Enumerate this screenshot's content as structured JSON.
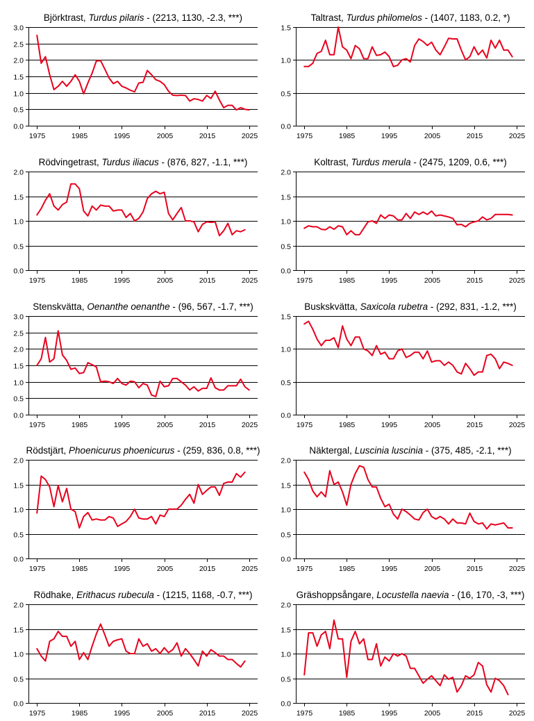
{
  "chart_data": [
    {
      "type": "line",
      "species": "Björktrast",
      "latin": "Turdus pilaris",
      "stats": "(2213, 1130, -2.3, ***)",
      "ylim": [
        0,
        3
      ],
      "yticks": [
        "0.0",
        "0.5",
        "1.0",
        "1.5",
        "2.0",
        "2.5",
        "3.0"
      ],
      "xticks": [
        "1975",
        "1985",
        "1995",
        "2005",
        "2015",
        "2025"
      ],
      "x_start": 1975,
      "values": [
        2.75,
        1.9,
        2.1,
        1.55,
        1.1,
        1.2,
        1.35,
        1.2,
        1.35,
        1.55,
        1.35,
        0.97,
        1.3,
        1.6,
        1.97,
        1.98,
        1.72,
        1.45,
        1.28,
        1.35,
        1.2,
        1.15,
        1.08,
        1.03,
        1.3,
        1.32,
        1.68,
        1.55,
        1.4,
        1.35,
        1.25,
        1.05,
        0.93,
        0.92,
        0.93,
        0.92,
        0.75,
        0.82,
        0.8,
        0.75,
        0.92,
        0.83,
        1.05,
        0.78,
        0.55,
        0.62,
        0.62,
        0.48,
        0.55,
        0.5,
        0.48
      ]
    },
    {
      "type": "line",
      "species": "Taltrast",
      "latin": "Turdus philomelos",
      "stats": "(1407, 1183, 0.2, *)",
      "ylim": [
        0,
        1.5
      ],
      "yticks": [
        "0.0",
        "0.5",
        "1.0",
        "1.5"
      ],
      "xticks": [
        "1975",
        "1985",
        "1995",
        "2005",
        "2015",
        "2025"
      ],
      "x_start": 1975,
      "values": [
        0.9,
        0.9,
        0.95,
        1.1,
        1.13,
        1.3,
        1.08,
        1.08,
        1.5,
        1.2,
        1.15,
        1.02,
        1.22,
        1.17,
        1.02,
        1.02,
        1.2,
        1.07,
        1.08,
        1.12,
        1.05,
        0.9,
        0.92,
        1.0,
        1.02,
        0.97,
        1.22,
        1.32,
        1.28,
        1.22,
        1.27,
        1.15,
        1.08,
        1.2,
        1.33,
        1.32,
        1.32,
        1.15,
        1.0,
        1.05,
        1.2,
        1.08,
        1.15,
        1.03,
        1.3,
        1.18,
        1.3,
        1.15,
        1.15,
        1.05
      ]
    },
    {
      "type": "line",
      "species": "Rödvingetrast",
      "latin": "Turdus iliacus",
      "stats": "(876, 827, -1.1, ***)",
      "ylim": [
        0,
        2
      ],
      "yticks": [
        "0.0",
        "0.5",
        "1.0",
        "1.5",
        "2.0"
      ],
      "xticks": [
        "1975",
        "1985",
        "1995",
        "2005",
        "2015",
        "2025"
      ],
      "x_start": 1975,
      "values": [
        1.12,
        1.25,
        1.42,
        1.55,
        1.3,
        1.22,
        1.33,
        1.38,
        1.75,
        1.75,
        1.65,
        1.2,
        1.1,
        1.3,
        1.22,
        1.32,
        1.3,
        1.3,
        1.2,
        1.22,
        1.22,
        1.07,
        1.15,
        1.0,
        1.05,
        1.18,
        1.45,
        1.55,
        1.6,
        1.55,
        1.58,
        1.15,
        1.02,
        1.15,
        1.27,
        1.0,
        1.0,
        0.98,
        0.78,
        0.93,
        0.98,
        0.97,
        0.98,
        0.7,
        0.8,
        0.95,
        0.72,
        0.8,
        0.78,
        0.82
      ]
    },
    {
      "type": "line",
      "species": "Koltrast",
      "latin": "Turdus merula",
      "stats": "(2475, 1209, 0.6, ***)",
      "ylim": [
        0,
        2
      ],
      "yticks": [
        "0.0",
        "0.5",
        "1.0",
        "1.5",
        "2.0"
      ],
      "xticks": [
        "1975",
        "1985",
        "1995",
        "2005",
        "2015",
        "2025"
      ],
      "x_start": 1975,
      "values": [
        0.85,
        0.9,
        0.88,
        0.88,
        0.83,
        0.82,
        0.88,
        0.83,
        0.9,
        0.88,
        0.72,
        0.8,
        0.72,
        0.72,
        0.85,
        0.98,
        1.0,
        0.95,
        1.12,
        1.05,
        1.12,
        1.1,
        1.02,
        1.02,
        1.15,
        1.05,
        1.18,
        1.13,
        1.18,
        1.13,
        1.2,
        1.1,
        1.12,
        1.1,
        1.08,
        1.05,
        0.92,
        0.93,
        0.88,
        0.95,
        0.98,
        1.0,
        1.08,
        1.02,
        1.05,
        1.13,
        1.13,
        1.13,
        1.13,
        1.12
      ]
    },
    {
      "type": "line",
      "species": "Stenskvätta",
      "latin": "Oenanthe oenanthe",
      "stats": "(96, 567, -1.7, ***)",
      "ylim": [
        0,
        3
      ],
      "yticks": [
        "0.0",
        "0.5",
        "1.0",
        "1.5",
        "2.0",
        "2.5",
        "3.0"
      ],
      "xticks": [
        "1975",
        "1985",
        "1995",
        "2005",
        "2015",
        "2025"
      ],
      "x_start": 1975,
      "values": [
        1.5,
        1.7,
        2.35,
        1.6,
        1.7,
        2.55,
        1.82,
        1.65,
        1.38,
        1.42,
        1.25,
        1.28,
        1.58,
        1.52,
        1.45,
        1.0,
        1.02,
        1.0,
        0.95,
        1.1,
        0.95,
        0.9,
        1.02,
        1.0,
        0.82,
        0.95,
        0.9,
        0.6,
        0.55,
        1.02,
        0.85,
        0.88,
        1.1,
        1.1,
        1.0,
        0.9,
        0.75,
        0.85,
        0.72,
        0.8,
        0.8,
        1.12,
        0.82,
        0.75,
        0.75,
        0.88,
        0.88,
        0.88,
        1.08,
        0.85,
        0.75
      ]
    },
    {
      "type": "line",
      "species": "Buskskvätta",
      "latin": "Saxicola rubetra",
      "stats": "(292, 831, -1.2, ***)",
      "ylim": [
        0,
        1.5
      ],
      "yticks": [
        "0.0",
        "0.5",
        "1.0",
        "1.5"
      ],
      "xticks": [
        "1975",
        "1985",
        "1995",
        "2005",
        "2015",
        "2025"
      ],
      "x_start": 1975,
      "values": [
        1.38,
        1.42,
        1.3,
        1.15,
        1.05,
        1.13,
        1.13,
        1.17,
        1.02,
        1.35,
        1.15,
        1.05,
        1.18,
        1.18,
        1.0,
        0.97,
        0.9,
        1.05,
        0.92,
        0.95,
        0.85,
        0.85,
        0.97,
        1.0,
        0.87,
        0.9,
        0.95,
        0.95,
        0.85,
        0.97,
        0.8,
        0.82,
        0.82,
        0.75,
        0.8,
        0.75,
        0.65,
        0.62,
        0.78,
        0.7,
        0.6,
        0.65,
        0.65,
        0.9,
        0.92,
        0.85,
        0.7,
        0.8,
        0.78,
        0.75
      ]
    },
    {
      "type": "line",
      "species": "Rödstjärt",
      "latin": "Phoenicurus phoenicurus",
      "stats": "(259, 836, 0.8, ***)",
      "ylim": [
        0,
        2
      ],
      "yticks": [
        "0.0",
        "0.5",
        "1.0",
        "1.5",
        "2.0"
      ],
      "xticks": [
        "1975",
        "1985",
        "1995",
        "2005",
        "2015",
        "2025"
      ],
      "x_start": 1975,
      "values": [
        0.92,
        1.67,
        1.6,
        1.45,
        1.05,
        1.48,
        1.15,
        1.42,
        1.0,
        0.95,
        0.62,
        0.85,
        0.93,
        0.78,
        0.8,
        0.78,
        0.78,
        0.85,
        0.82,
        0.65,
        0.7,
        0.75,
        0.85,
        1.0,
        0.82,
        0.8,
        0.8,
        0.85,
        0.7,
        0.88,
        0.85,
        1.0,
        1.0,
        1.0,
        1.08,
        1.2,
        1.3,
        1.12,
        1.5,
        1.3,
        1.38,
        1.45,
        1.45,
        1.28,
        1.52,
        1.55,
        1.55,
        1.72,
        1.65,
        1.75
      ]
    },
    {
      "type": "line",
      "species": "Näktergal",
      "latin": "Luscinia luscinia",
      "stats": "(375, 485, -2.1, ***)",
      "ylim": [
        0,
        2
      ],
      "yticks": [
        "0.0",
        "0.5",
        "1.0",
        "1.5",
        "2.0"
      ],
      "xticks": [
        "1975",
        "1985",
        "1995",
        "2005",
        "2015",
        "2025"
      ],
      "x_start": 1975,
      "values": [
        1.75,
        1.6,
        1.37,
        1.25,
        1.35,
        1.25,
        1.78,
        1.5,
        1.55,
        1.35,
        1.08,
        1.5,
        1.72,
        1.88,
        1.85,
        1.6,
        1.45,
        1.45,
        1.22,
        1.05,
        1.1,
        0.9,
        0.8,
        1.0,
        0.95,
        0.88,
        0.8,
        0.78,
        0.93,
        1.0,
        0.85,
        0.8,
        0.85,
        0.8,
        0.7,
        0.8,
        0.72,
        0.72,
        0.7,
        0.92,
        0.75,
        0.7,
        0.72,
        0.6,
        0.7,
        0.68,
        0.7,
        0.72,
        0.62,
        0.62
      ]
    },
    {
      "type": "line",
      "species": "Rödhake",
      "latin": "Erithacus rubecula",
      "stats": "(1215, 1168, -0.7, ***)",
      "ylim": [
        0,
        2
      ],
      "yticks": [
        "0.0",
        "0.5",
        "1.0",
        "1.5",
        "2.0"
      ],
      "xticks": [
        "1975",
        "1985",
        "1995",
        "2005",
        "2015",
        "2025"
      ],
      "x_start": 1975,
      "values": [
        1.1,
        0.95,
        0.85,
        1.25,
        1.3,
        1.45,
        1.35,
        1.35,
        1.15,
        1.25,
        0.88,
        1.02,
        0.88,
        1.15,
        1.4,
        1.6,
        1.38,
        1.15,
        1.25,
        1.28,
        1.3,
        1.05,
        1.0,
        1.0,
        1.3,
        1.15,
        1.2,
        1.05,
        1.1,
        1.0,
        1.12,
        1.02,
        1.08,
        1.22,
        0.95,
        1.1,
        1.0,
        0.88,
        0.75,
        1.05,
        0.95,
        1.08,
        1.02,
        0.95,
        0.95,
        0.88,
        0.88,
        0.8,
        0.73,
        0.85
      ]
    },
    {
      "type": "line",
      "species": "Gräshoppsångare",
      "latin": "Locustella naevia",
      "stats": "(16, 170, -3, ***)",
      "ylim": [
        0,
        2
      ],
      "yticks": [
        "0.0",
        "0.5",
        "1.0",
        "1.5",
        "2.0"
      ],
      "xticks": [
        "1975",
        "1985",
        "1995",
        "2005",
        "2015",
        "2025"
      ],
      "x_start": 1975,
      "values": [
        0.57,
        1.42,
        1.42,
        1.15,
        1.38,
        1.45,
        1.1,
        1.68,
        1.3,
        1.3,
        0.52,
        1.25,
        1.45,
        1.2,
        1.3,
        0.88,
        0.88,
        1.2,
        0.75,
        0.93,
        0.85,
        1.0,
        0.95,
        1.0,
        0.95,
        0.7,
        0.7,
        0.55,
        0.4,
        0.48,
        0.55,
        0.45,
        0.35,
        0.57,
        0.48,
        0.52,
        0.22,
        0.35,
        0.55,
        0.5,
        0.57,
        0.82,
        0.75,
        0.37,
        0.22,
        0.5,
        0.45,
        0.35,
        0.17
      ]
    }
  ]
}
